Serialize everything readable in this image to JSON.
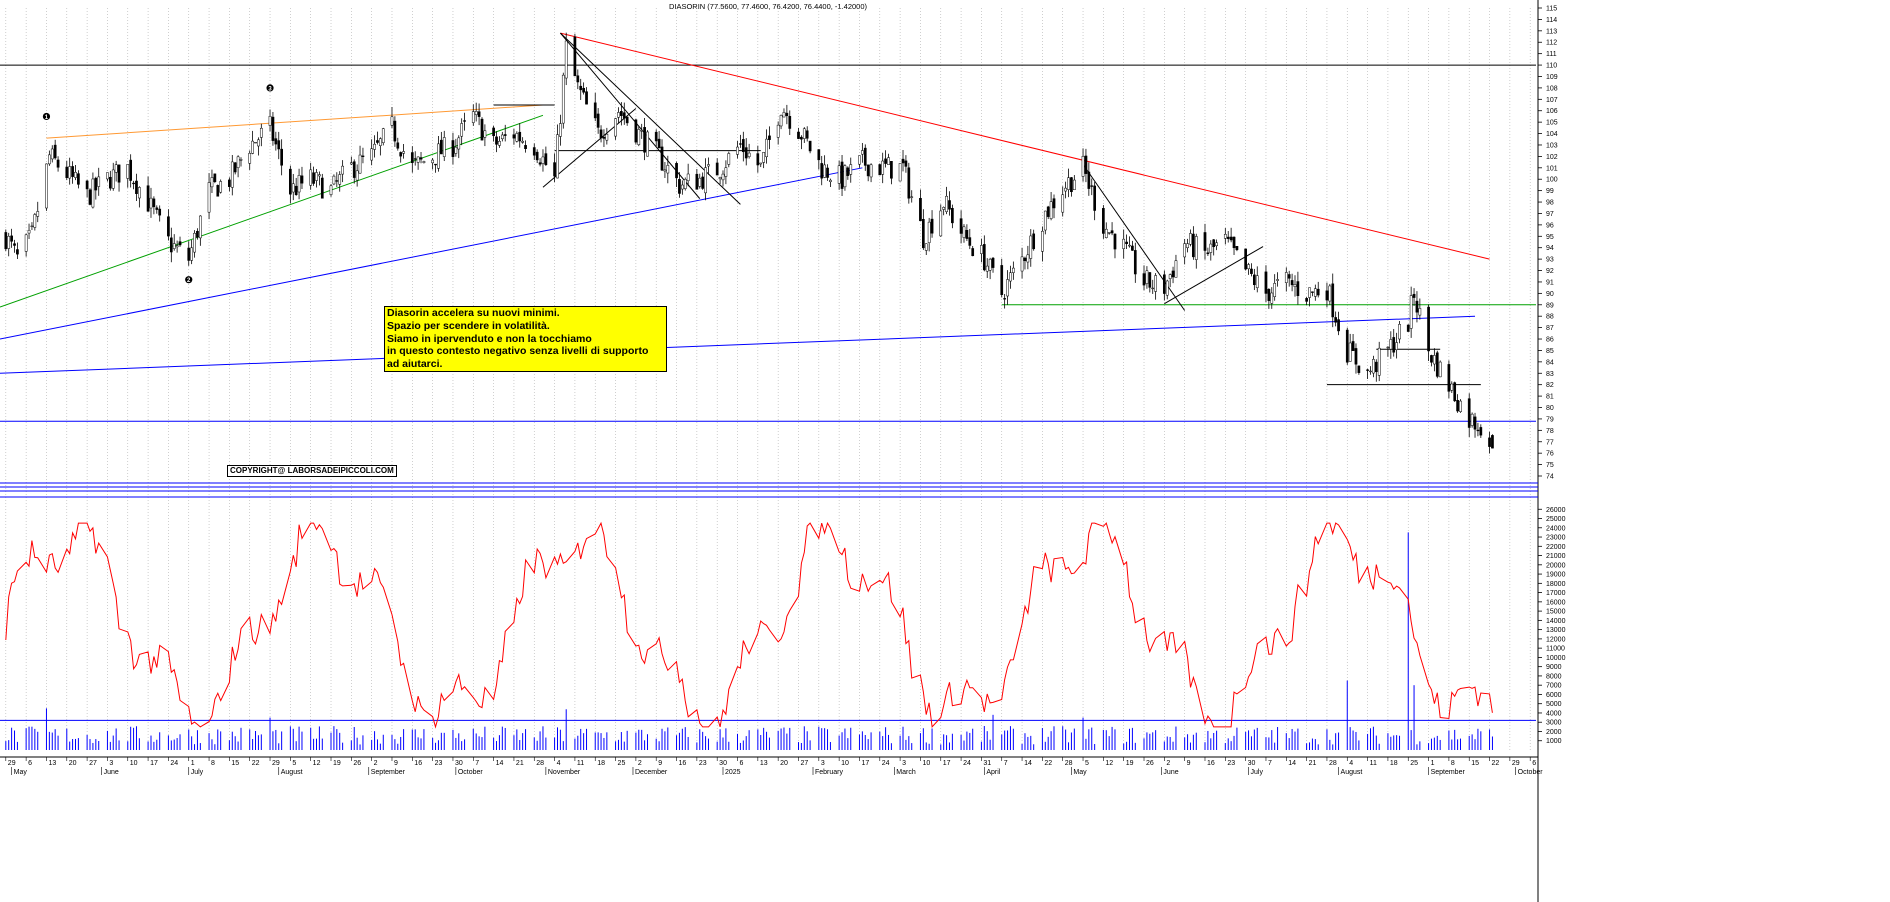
{
  "header": {
    "title": "DIASORIN (77.5600, 77.4600, 76.4200, 76.4400, -1.42000)"
  },
  "annotation": {
    "lines": [
      "Diasorin accelera su nuovi minimi.",
      "Spazio per scendere in volatilità.",
      "Siamo in ipervenduto e non la tocchiamo",
      "in questo contesto negativo senza livelli di supporto",
      "ad aiutarci."
    ]
  },
  "copyright": "COPYRIGHT@ LABORSADEIPICCOLI.COM",
  "chart_data": [
    {
      "type": "candlestick",
      "title": "DIASORIN (77.5600, 77.4600, 76.4200, 76.4400, -1.42000)",
      "ylim": [
        74,
        115
      ],
      "y_ticks": [
        74,
        75,
        76,
        77,
        78,
        79,
        80,
        81,
        82,
        83,
        84,
        85,
        86,
        87,
        88,
        89,
        90,
        91,
        92,
        93,
        94,
        95,
        96,
        97,
        98,
        99,
        100,
        101,
        102,
        103,
        104,
        105,
        106,
        107,
        108,
        109,
        110,
        111,
        112,
        113,
        114,
        115
      ],
      "last": {
        "open": 77.56,
        "high": 77.46,
        "low": 76.42,
        "close": 76.44,
        "change": -1.42
      },
      "price_path": [
        {
          "date": "2024-04-29",
          "close": 95
        },
        {
          "date": "2024-05-03",
          "close": 93
        },
        {
          "date": "2024-05-08",
          "close": 95
        },
        {
          "date": "2024-05-14",
          "close": 102
        },
        {
          "date": "2024-05-20",
          "close": 100.5
        },
        {
          "date": "2024-05-27",
          "close": 98.5
        },
        {
          "date": "2024-06-03",
          "close": 100
        },
        {
          "date": "2024-06-10",
          "close": 101
        },
        {
          "date": "2024-06-17",
          "close": 98
        },
        {
          "date": "2024-06-24",
          "close": 94.5
        },
        {
          "date": "2024-07-01",
          "close": 93
        },
        {
          "date": "2024-07-08",
          "close": 99
        },
        {
          "date": "2024-07-15",
          "close": 100
        },
        {
          "date": "2024-07-22",
          "close": 103
        },
        {
          "date": "2024-07-29",
          "close": 104.5
        },
        {
          "date": "2024-08-05",
          "close": 99
        },
        {
          "date": "2024-08-12",
          "close": 100
        },
        {
          "date": "2024-08-19",
          "close": 99
        },
        {
          "date": "2024-08-26",
          "close": 101
        },
        {
          "date": "2024-09-02",
          "close": 102
        },
        {
          "date": "2024-09-09",
          "close": 104.5
        },
        {
          "date": "2024-09-16",
          "close": 101
        },
        {
          "date": "2024-09-23",
          "close": 102
        },
        {
          "date": "2024-09-30",
          "close": 103
        },
        {
          "date": "2024-10-07",
          "close": 105.5
        },
        {
          "date": "2024-10-14",
          "close": 103
        },
        {
          "date": "2024-10-21",
          "close": 104
        },
        {
          "date": "2024-10-28",
          "close": 103
        },
        {
          "date": "2024-11-04",
          "close": 100
        },
        {
          "date": "2024-11-08",
          "close": 111.5
        },
        {
          "date": "2024-11-12",
          "close": 108
        },
        {
          "date": "2024-11-19",
          "close": 104
        },
        {
          "date": "2024-11-26",
          "close": 106
        },
        {
          "date": "2024-12-03",
          "close": 104
        },
        {
          "date": "2024-12-10",
          "close": 102
        },
        {
          "date": "2024-12-17",
          "close": 99.5
        },
        {
          "date": "2024-12-24",
          "close": 100
        },
        {
          "date": "2024-12-31",
          "close": 101
        },
        {
          "date": "2025-01-07",
          "close": 103
        },
        {
          "date": "2025-01-14",
          "close": 101
        },
        {
          "date": "2025-01-21",
          "close": 106.5
        },
        {
          "date": "2025-01-28",
          "close": 104
        },
        {
          "date": "2025-02-04",
          "close": 101
        },
        {
          "date": "2025-02-11",
          "close": 100
        },
        {
          "date": "2025-02-18",
          "close": 101.5
        },
        {
          "date": "2025-02-25",
          "close": 101
        },
        {
          "date": "2025-03-04",
          "close": 101
        },
        {
          "date": "2025-03-11",
          "close": 95
        },
        {
          "date": "2025-03-18",
          "close": 98
        },
        {
          "date": "2025-03-25",
          "close": 95
        },
        {
          "date": "2025-04-01",
          "close": 93
        },
        {
          "date": "2025-04-07",
          "close": 90
        },
        {
          "date": "2025-04-14",
          "close": 93
        },
        {
          "date": "2025-04-22",
          "close": 97
        },
        {
          "date": "2025-04-29",
          "close": 99.5
        },
        {
          "date": "2025-05-05",
          "close": 101
        },
        {
          "date": "2025-05-12",
          "close": 96
        },
        {
          "date": "2025-05-19",
          "close": 94
        },
        {
          "date": "2025-05-26",
          "close": 91
        },
        {
          "date": "2025-06-02",
          "close": 90.5
        },
        {
          "date": "2025-06-09",
          "close": 94.5
        },
        {
          "date": "2025-06-16",
          "close": 93.5
        },
        {
          "date": "2025-06-23",
          "close": 94.5
        },
        {
          "date": "2025-06-30",
          "close": 92
        },
        {
          "date": "2025-07-07",
          "close": 90
        },
        {
          "date": "2025-07-14",
          "close": 91
        },
        {
          "date": "2025-07-21",
          "close": 90
        },
        {
          "date": "2025-07-28",
          "close": 90.5
        },
        {
          "date": "2025-08-04",
          "close": 85
        },
        {
          "date": "2025-08-11",
          "close": 83
        },
        {
          "date": "2025-08-18",
          "close": 85
        },
        {
          "date": "2025-08-25",
          "close": 87.5
        },
        {
          "date": "2025-08-27",
          "close": 90
        },
        {
          "date": "2025-09-01",
          "close": 85
        },
        {
          "date": "2025-09-08",
          "close": 82
        },
        {
          "date": "2025-09-15",
          "close": 79
        },
        {
          "date": "2025-09-19",
          "close": 78.5
        },
        {
          "date": "2025-09-23",
          "close": 76.44
        }
      ],
      "horizontal_levels": [
        {
          "value": 110,
          "color": "#000000"
        },
        {
          "value": 89,
          "color": "#00a000"
        },
        {
          "value": 82,
          "color": "#000000"
        },
        {
          "value": 78.8,
          "color": "#0000ff"
        }
      ],
      "wave_labels": [
        "1",
        "2",
        "3"
      ],
      "x_months": [
        "May",
        "June",
        "July",
        "August",
        "September",
        "October",
        "November",
        "December",
        "2025",
        "February",
        "March",
        "April",
        "May",
        "June",
        "July",
        "August",
        "September",
        "October"
      ],
      "x_days": [
        "29",
        "6",
        "13",
        "20",
        "27",
        "3",
        "10",
        "17",
        "24",
        "1",
        "8",
        "15",
        "22",
        "29",
        "5",
        "12",
        "19",
        "26",
        "2",
        "9",
        "16",
        "23",
        "30",
        "7",
        "14",
        "21",
        "28",
        "4",
        "11",
        "18",
        "25",
        "2",
        "9",
        "16",
        "23",
        "30",
        "6",
        "13",
        "20",
        "27",
        "3",
        "10",
        "17",
        "24",
        "3",
        "10",
        "17",
        "24",
        "31",
        "7",
        "14",
        "22",
        "28",
        "5",
        "12",
        "19",
        "26",
        "2",
        "9",
        "16",
        "23",
        "30",
        "7",
        "14",
        "21",
        "28",
        "4",
        "11",
        "18",
        "25",
        "1",
        "8",
        "15",
        "22",
        "29",
        "6"
      ]
    },
    {
      "type": "bar+line",
      "title": "Volume",
      "ylim": [
        0,
        27000
      ],
      "y_ticks": [
        1000,
        2000,
        3000,
        4000,
        5000,
        6000,
        7000,
        8000,
        9000,
        10000,
        11000,
        12000,
        13000,
        14000,
        15000,
        16000,
        17000,
        18000,
        19000,
        20000,
        21000,
        22000,
        23000,
        24000,
        25000,
        26000
      ],
      "reference_line": 3200,
      "oscillator_range": [
        2500,
        24500
      ],
      "volume_spikes": [
        {
          "date": "2024-05-13",
          "value": 4500
        },
        {
          "date": "2024-07-29",
          "value": 3500
        },
        {
          "date": "2024-11-08",
          "value": 4400
        },
        {
          "date": "2025-04-04",
          "value": 3800
        },
        {
          "date": "2025-05-05",
          "value": 3500
        },
        {
          "date": "2025-08-04",
          "value": 7500
        },
        {
          "date": "2025-08-25",
          "value": 23500
        },
        {
          "date": "2025-08-27",
          "value": 7000
        }
      ]
    }
  ],
  "colors": {
    "price": "#000000",
    "oscillator": "#ff0000",
    "volume": "#0000ff",
    "trend_red": "#ff0000",
    "trend_blue": "#0000ff",
    "trend_green": "#00a000",
    "trend_orange": "#ff9933",
    "note_bg": "#ffff00"
  }
}
